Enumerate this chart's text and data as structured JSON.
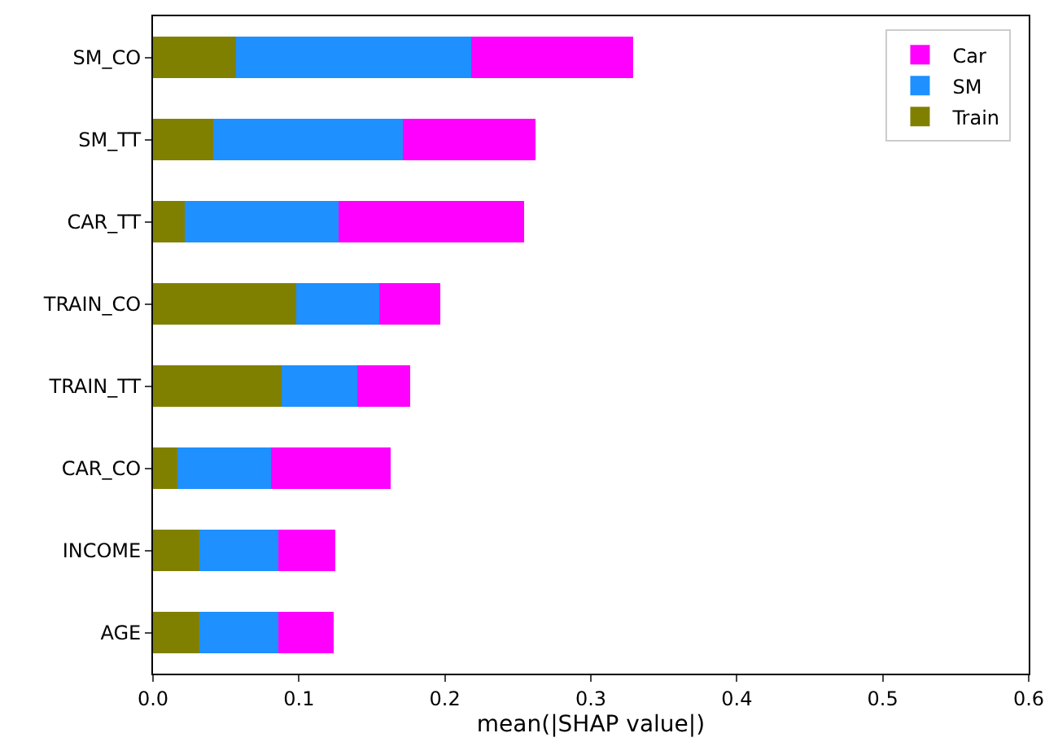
{
  "chart_data": {
    "type": "bar",
    "orientation": "horizontal",
    "stacked": true,
    "xlabel": "mean(|SHAP value|)",
    "categories": [
      "SM_CO",
      "SM_TT",
      "CAR_TT",
      "TRAIN_CO",
      "TRAIN_TT",
      "CAR_CO",
      "INCOME",
      "AGE"
    ],
    "series": [
      {
        "name": "Train",
        "color": "#808000",
        "values": [
          0.057,
          0.041,
          0.022,
          0.098,
          0.088,
          0.017,
          0.032,
          0.032
        ]
      },
      {
        "name": "SM",
        "color": "#1e90ff",
        "values": [
          0.161,
          0.13,
          0.105,
          0.057,
          0.052,
          0.064,
          0.054,
          0.054
        ]
      },
      {
        "name": "Car",
        "color": "#ff00ff",
        "values": [
          0.111,
          0.091,
          0.127,
          0.042,
          0.036,
          0.082,
          0.039,
          0.038
        ]
      }
    ],
    "xlim": [
      0,
      0.6
    ],
    "xticks": [
      {
        "value": 0,
        "label": "0.0"
      },
      {
        "value": 0.1,
        "label": "0.1"
      },
      {
        "value": 0.2,
        "label": "0.2"
      },
      {
        "value": 0.3,
        "label": "0.3"
      },
      {
        "value": 0.4,
        "label": "0.4"
      },
      {
        "value": 0.5,
        "label": "0.5"
      },
      {
        "value": 0.6,
        "label": "0.6"
      }
    ],
    "grid": false,
    "legend": "top right"
  }
}
